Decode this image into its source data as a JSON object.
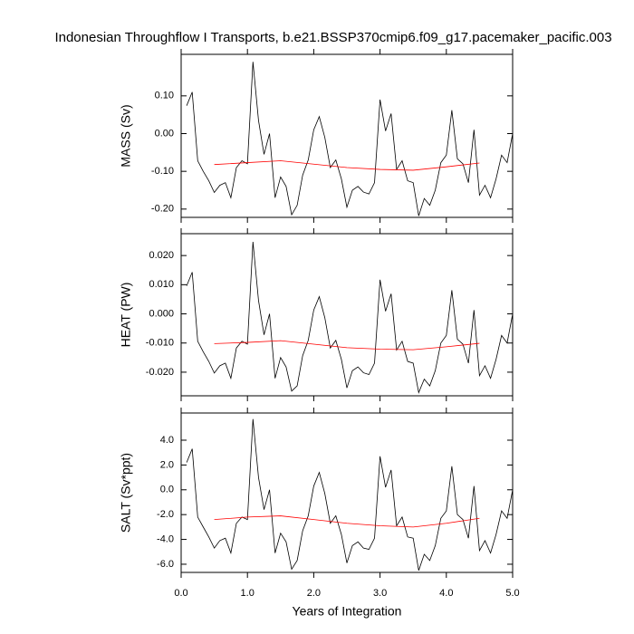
{
  "chart_data": [
    {
      "type": "line",
      "title": "Indonesian Throughflow I Transports, b.e21.BSSP370cmip6.f09_g17.pacemaker_pacific.003",
      "ylabel": "MASS (Sv)",
      "xlim": [
        0,
        5
      ],
      "xticks": [
        0,
        1,
        2,
        3,
        4,
        5
      ],
      "ylim": [
        -0.222,
        0.21
      ],
      "yticks": [
        {
          "value": 0.1,
          "label": "0.10"
        },
        {
          "value": 0,
          "label": "0.00"
        },
        {
          "value": -0.1,
          "label": "-0.10"
        },
        {
          "value": -0.2,
          "label": "-0.20"
        }
      ],
      "x": [
        0.083,
        0.167,
        0.25,
        0.333,
        0.417,
        0.5,
        0.583,
        0.667,
        0.75,
        0.833,
        0.917,
        1.0,
        1.083,
        1.167,
        1.25,
        1.333,
        1.417,
        1.5,
        1.583,
        1.667,
        1.75,
        1.833,
        1.917,
        2.0,
        2.083,
        2.167,
        2.25,
        2.333,
        2.417,
        2.5,
        2.583,
        2.667,
        2.75,
        2.833,
        2.917,
        3.0,
        3.083,
        3.167,
        3.25,
        3.333,
        3.417,
        3.5,
        3.583,
        3.667,
        3.75,
        3.833,
        3.917,
        4.0,
        4.083,
        4.167,
        4.25,
        4.333,
        4.417,
        4.5,
        4.583,
        4.667,
        4.75,
        4.833,
        4.917,
        5.0
      ],
      "series": [
        {
          "color": "#000000",
          "values": [
            0.074,
            0.11,
            -0.072,
            -0.1,
            -0.125,
            -0.156,
            -0.137,
            -0.13,
            -0.17,
            -0.09,
            -0.072,
            -0.08,
            0.19,
            0.035,
            -0.055,
            0.0,
            -0.17,
            -0.115,
            -0.14,
            -0.215,
            -0.19,
            -0.11,
            -0.07,
            0.01,
            0.045,
            -0.01,
            -0.09,
            -0.07,
            -0.12,
            -0.195,
            -0.15,
            -0.14,
            -0.155,
            -0.16,
            -0.13,
            0.09,
            0.007,
            0.053,
            -0.095,
            -0.072,
            -0.125,
            -0.13,
            -0.218,
            -0.172,
            -0.19,
            -0.15,
            -0.077,
            -0.057,
            0.062,
            -0.067,
            -0.08,
            -0.13,
            0.01,
            -0.163,
            -0.137,
            -0.17,
            -0.12,
            -0.057,
            -0.077,
            0.0
          ]
        },
        {
          "color": "#ff0000",
          "x": [
            0.5,
            1.0,
            1.5,
            2.0,
            2.5,
            3.0,
            3.5,
            4.0,
            4.5
          ],
          "values": [
            -0.082,
            -0.077,
            -0.072,
            -0.081,
            -0.09,
            -0.095,
            -0.097,
            -0.088,
            -0.078
          ]
        }
      ]
    },
    {
      "type": "line",
      "ylabel": "HEAT (PW)",
      "xlim": [
        0,
        5
      ],
      "xticks": [
        0,
        1,
        2,
        3,
        4,
        5
      ],
      "ylim": [
        -0.0281,
        0.0275
      ],
      "yticks": [
        {
          "value": 0.02,
          "label": "0.020"
        },
        {
          "value": 0.01,
          "label": "0.010"
        },
        {
          "value": 0,
          "label": "0.000"
        },
        {
          "value": -0.01,
          "label": "-0.010"
        },
        {
          "value": -0.02,
          "label": "-0.020"
        }
      ],
      "x": [
        0.083,
        0.167,
        0.25,
        0.333,
        0.417,
        0.5,
        0.583,
        0.667,
        0.75,
        0.833,
        0.917,
        1.0,
        1.083,
        1.167,
        1.25,
        1.333,
        1.417,
        1.5,
        1.583,
        1.667,
        1.75,
        1.833,
        1.917,
        2.0,
        2.083,
        2.167,
        2.25,
        2.333,
        2.417,
        2.5,
        2.583,
        2.667,
        2.75,
        2.833,
        2.917,
        3.0,
        3.083,
        3.167,
        3.25,
        3.333,
        3.417,
        3.5,
        3.583,
        3.667,
        3.75,
        3.833,
        3.917,
        4.0,
        4.083,
        4.167,
        4.25,
        4.333,
        4.417,
        4.5,
        4.583,
        4.667,
        4.75,
        4.833,
        4.917,
        5.0
      ],
      "series": [
        {
          "color": "#000000",
          "values": [
            0.0096,
            0.0143,
            -0.0094,
            -0.013,
            -0.0163,
            -0.0203,
            -0.0178,
            -0.0169,
            -0.0221,
            -0.0117,
            -0.0094,
            -0.0104,
            0.0247,
            0.0046,
            -0.0072,
            0.0,
            -0.0221,
            -0.015,
            -0.0182,
            -0.0265,
            -0.0247,
            -0.0143,
            -0.0091,
            0.0013,
            0.0059,
            -0.0013,
            -0.0117,
            -0.0091,
            -0.0156,
            -0.0254,
            -0.0195,
            -0.0182,
            -0.0202,
            -0.0208,
            -0.0169,
            0.0117,
            0.0009,
            0.0069,
            -0.0124,
            -0.0094,
            -0.0163,
            -0.0169,
            -0.027,
            -0.0224,
            -0.0247,
            -0.0195,
            -0.01,
            -0.0074,
            0.0081,
            -0.0087,
            -0.0104,
            -0.0169,
            0.0013,
            -0.0212,
            -0.0178,
            -0.0221,
            -0.0156,
            -0.0074,
            -0.01,
            0.0
          ]
        },
        {
          "color": "#ff0000",
          "x": [
            0.5,
            1.0,
            1.5,
            2.0,
            2.5,
            3.0,
            3.5,
            4.0,
            4.5
          ],
          "values": [
            -0.0102,
            -0.0098,
            -0.0092,
            -0.0104,
            -0.0116,
            -0.0121,
            -0.0123,
            -0.0113,
            -0.0101
          ]
        }
      ]
    },
    {
      "type": "line",
      "ylabel": "SALT (Sv*ppt)",
      "xlabel": "Years of Integration",
      "xlim": [
        0,
        5
      ],
      "xticks": [
        {
          "value": 0,
          "label": "0.0"
        },
        {
          "value": 1,
          "label": "1.0"
        },
        {
          "value": 2,
          "label": "2.0"
        },
        {
          "value": 3,
          "label": "3.0"
        },
        {
          "value": 4,
          "label": "4.0"
        },
        {
          "value": 5,
          "label": "5.0"
        }
      ],
      "ylim": [
        -6.66,
        6.19
      ],
      "yticks": [
        {
          "value": 4,
          "label": "4.0"
        },
        {
          "value": 2,
          "label": "2.0"
        },
        {
          "value": 0,
          "label": "0.0"
        },
        {
          "value": -2,
          "label": "-2.0"
        },
        {
          "value": -4,
          "label": "-4.0"
        },
        {
          "value": -6,
          "label": "-6.0"
        }
      ],
      "x": [
        0.083,
        0.167,
        0.25,
        0.333,
        0.417,
        0.5,
        0.583,
        0.667,
        0.75,
        0.833,
        0.917,
        1.0,
        1.083,
        1.167,
        1.25,
        1.333,
        1.417,
        1.5,
        1.583,
        1.667,
        1.75,
        1.833,
        1.917,
        2.0,
        2.083,
        2.167,
        2.25,
        2.333,
        2.417,
        2.5,
        2.583,
        2.667,
        2.75,
        2.833,
        2.917,
        3.0,
        3.083,
        3.167,
        3.25,
        3.333,
        3.417,
        3.5,
        3.583,
        3.667,
        3.75,
        3.833,
        3.917,
        4.0,
        4.083,
        4.167,
        4.25,
        4.333,
        4.417,
        4.5,
        4.583,
        4.667,
        4.75,
        4.833,
        4.917,
        5.0
      ],
      "series": [
        {
          "color": "#000000",
          "values": [
            2.2,
            3.3,
            -2.2,
            -3.0,
            -3.8,
            -4.7,
            -4.1,
            -3.9,
            -5.1,
            -2.7,
            -2.2,
            -2.4,
            5.7,
            1.0,
            -1.6,
            0.0,
            -5.1,
            -3.5,
            -4.2,
            -6.4,
            -5.7,
            -3.3,
            -2.1,
            0.3,
            1.4,
            -0.3,
            -2.7,
            -2.1,
            -3.6,
            -5.9,
            -4.5,
            -4.2,
            -4.7,
            -4.8,
            -3.9,
            2.7,
            0.2,
            1.6,
            -2.9,
            -2.2,
            -3.8,
            -3.9,
            -6.5,
            -5.2,
            -5.7,
            -4.5,
            -2.3,
            -1.7,
            1.9,
            -2.0,
            -2.4,
            -3.9,
            0.3,
            -4.9,
            -4.1,
            -5.1,
            -3.6,
            -1.7,
            -2.3,
            0.0
          ]
        },
        {
          "color": "#ff0000",
          "x": [
            0.5,
            1.0,
            1.5,
            2.0,
            2.5,
            3.0,
            3.5,
            4.0,
            4.5
          ],
          "values": [
            -2.4,
            -2.2,
            -2.1,
            -2.4,
            -2.7,
            -2.9,
            -3.0,
            -2.7,
            -2.3
          ]
        }
      ]
    }
  ]
}
